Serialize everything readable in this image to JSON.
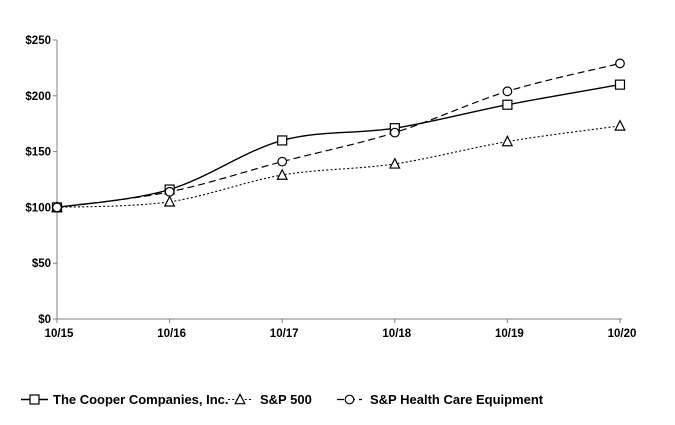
{
  "chart_data": {
    "type": "line",
    "title": "",
    "xlabel": "",
    "ylabel": "",
    "categories": [
      "10/15",
      "10/16",
      "10/17",
      "10/18",
      "10/19",
      "10/20"
    ],
    "series": [
      {
        "name": "The Cooper Companies, Inc.",
        "marker": "square",
        "line_style": "solid",
        "values": [
          100,
          116,
          160,
          171,
          192,
          210
        ]
      },
      {
        "name": "S&P 500",
        "marker": "triangle",
        "line_style": "dotted",
        "values": [
          100,
          105,
          129,
          139,
          159,
          173
        ]
      },
      {
        "name": "S&P Health Care Equipment",
        "marker": "circle",
        "line_style": "dashed",
        "values": [
          100,
          114,
          141,
          167,
          204,
          229
        ]
      }
    ],
    "ylim": [
      0,
      250
    ],
    "y_tick_values": [
      0,
      50,
      100,
      150,
      200,
      250
    ],
    "y_tick_labels": [
      "$0",
      "$50",
      "$100",
      "$150",
      "$200",
      "$250"
    ],
    "grid": false,
    "legend_position": "bottom",
    "colors": {
      "series_stroke": "#000000",
      "marker_fill": "#ffffff",
      "axis_line": "#808080",
      "text": "#000000",
      "background": "#ffffff"
    }
  }
}
